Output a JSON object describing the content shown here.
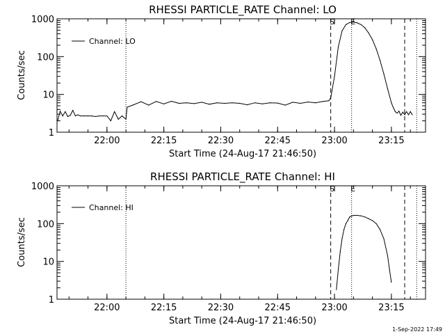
{
  "footer": {
    "timestamp": "1-Sep-2022 17:49"
  },
  "chart_data": [
    {
      "type": "line",
      "title": "RHESSI PARTICLE_RATE Channel: LO",
      "xlabel": "Start Time (24-Aug-17 21:46:50)",
      "ylabel": "Counts/sec",
      "xlim": [
        "21:46:50",
        "23:24:00"
      ],
      "ylim": [
        1,
        1000
      ],
      "y_scale": "log",
      "x_ticks": [
        "22:00",
        "22:15",
        "22:30",
        "22:45",
        "23:00",
        "23:15"
      ],
      "y_ticks": [
        "1",
        "10",
        "100",
        "1000"
      ],
      "legend": {
        "label": "Channel: LO",
        "placement": "top-left"
      },
      "markers": [
        {
          "label": "S",
          "time": "22:59:00",
          "style": "dashed"
        },
        {
          "label": "E",
          "time": "23:04:30",
          "style": "dotted"
        },
        {
          "label": "",
          "time": "22:05:00",
          "style": "dotted"
        },
        {
          "label": "",
          "time": "23:18:30",
          "style": "dashed"
        },
        {
          "label": "",
          "time": "23:21:40",
          "style": "dotted"
        }
      ],
      "series": [
        {
          "name": "Channel: LO",
          "x": [
            "21:47:00",
            "21:47:40",
            "21:48:20",
            "21:49:00",
            "21:49:40",
            "21:50:20",
            "21:51:00",
            "21:51:40",
            "21:52:20",
            "21:53:00",
            "21:54:00",
            "21:55:00",
            "21:56:00",
            "21:57:00",
            "21:58:00",
            "21:59:00",
            "22:00:00",
            "22:01:00",
            "22:02:00",
            "22:03:00",
            "22:04:00",
            "22:05:00",
            "22:05:20",
            "22:07:00",
            "22:09:00",
            "22:11:00",
            "22:13:00",
            "22:15:00",
            "22:17:00",
            "22:19:00",
            "22:21:00",
            "22:23:00",
            "22:25:00",
            "22:27:00",
            "22:29:00",
            "22:31:00",
            "22:33:00",
            "22:35:00",
            "22:37:00",
            "22:39:00",
            "22:41:00",
            "22:43:00",
            "22:45:00",
            "22:47:00",
            "22:49:00",
            "22:51:00",
            "22:53:00",
            "22:55:00",
            "22:57:00",
            "22:58:30",
            "22:59:00",
            "23:00:00",
            "23:01:00",
            "23:02:00",
            "23:03:00",
            "23:04:00",
            "23:05:00",
            "23:06:00",
            "23:07:00",
            "23:08:00",
            "23:09:00",
            "23:10:00",
            "23:11:00",
            "23:12:00",
            "23:13:00",
            "23:14:00",
            "23:15:00",
            "23:15:30",
            "23:16:00",
            "23:16:30",
            "23:17:00",
            "23:17:30",
            "23:18:00",
            "23:18:30",
            "23:19:00",
            "23:19:30",
            "23:20:00",
            "23:20:30"
          ],
          "values": [
            2.0,
            3.6,
            2.7,
            3.5,
            2.6,
            2.8,
            3.8,
            2.7,
            2.9,
            2.7,
            2.7,
            2.7,
            2.7,
            2.6,
            2.7,
            2.7,
            2.7,
            2.0,
            3.5,
            2.2,
            2.7,
            2.2,
            4.6,
            5.3,
            6.4,
            5.2,
            6.5,
            5.6,
            6.6,
            5.8,
            6.0,
            5.7,
            6.2,
            5.5,
            6.0,
            5.8,
            6.0,
            5.8,
            5.3,
            6.0,
            5.6,
            6.0,
            5.9,
            5.2,
            6.2,
            5.8,
            6.3,
            6.0,
            6.5,
            6.8,
            8.0,
            30,
            180,
            480,
            700,
            800,
            820,
            780,
            700,
            580,
            420,
            280,
            160,
            80,
            35,
            14,
            6,
            4.5,
            3.5,
            3.2,
            3.6,
            2.8,
            3.4,
            2.9,
            3.5,
            2.9,
            3.5,
            2.9
          ]
        }
      ]
    },
    {
      "type": "line",
      "title": "RHESSI PARTICLE_RATE Channel: HI",
      "xlabel": "Start Time (24-Aug-17 21:46:50)",
      "ylabel": "Counts/sec",
      "xlim": [
        "21:46:50",
        "23:24:00"
      ],
      "ylim": [
        1,
        1000
      ],
      "y_scale": "log",
      "x_ticks": [
        "22:00",
        "22:15",
        "22:30",
        "22:45",
        "23:00",
        "23:15"
      ],
      "y_ticks": [
        "1",
        "10",
        "100",
        "1000"
      ],
      "legend": {
        "label": "Channel: HI",
        "placement": "top-left"
      },
      "markers": [
        {
          "label": "S",
          "time": "22:59:00",
          "style": "dashed"
        },
        {
          "label": "E",
          "time": "23:04:30",
          "style": "dotted"
        },
        {
          "label": "",
          "time": "22:05:00",
          "style": "dotted"
        },
        {
          "label": "",
          "time": "23:18:30",
          "style": "dashed"
        },
        {
          "label": "",
          "time": "23:21:40",
          "style": "dotted"
        }
      ],
      "series": [
        {
          "name": "Channel: HI",
          "x": [
            "23:00:30",
            "23:01:00",
            "23:01:30",
            "23:02:00",
            "23:02:30",
            "23:03:00",
            "23:03:30",
            "23:04:00",
            "23:05:00",
            "23:06:00",
            "23:07:00",
            "23:08:00",
            "23:09:00",
            "23:10:00",
            "23:11:00",
            "23:12:00",
            "23:13:00",
            "23:14:00",
            "23:14:30",
            "23:15:00"
          ],
          "values": [
            1.8,
            6,
            18,
            40,
            70,
            100,
            120,
            150,
            165,
            165,
            160,
            150,
            135,
            120,
            100,
            70,
            40,
            14,
            6,
            2.8
          ]
        }
      ]
    }
  ]
}
